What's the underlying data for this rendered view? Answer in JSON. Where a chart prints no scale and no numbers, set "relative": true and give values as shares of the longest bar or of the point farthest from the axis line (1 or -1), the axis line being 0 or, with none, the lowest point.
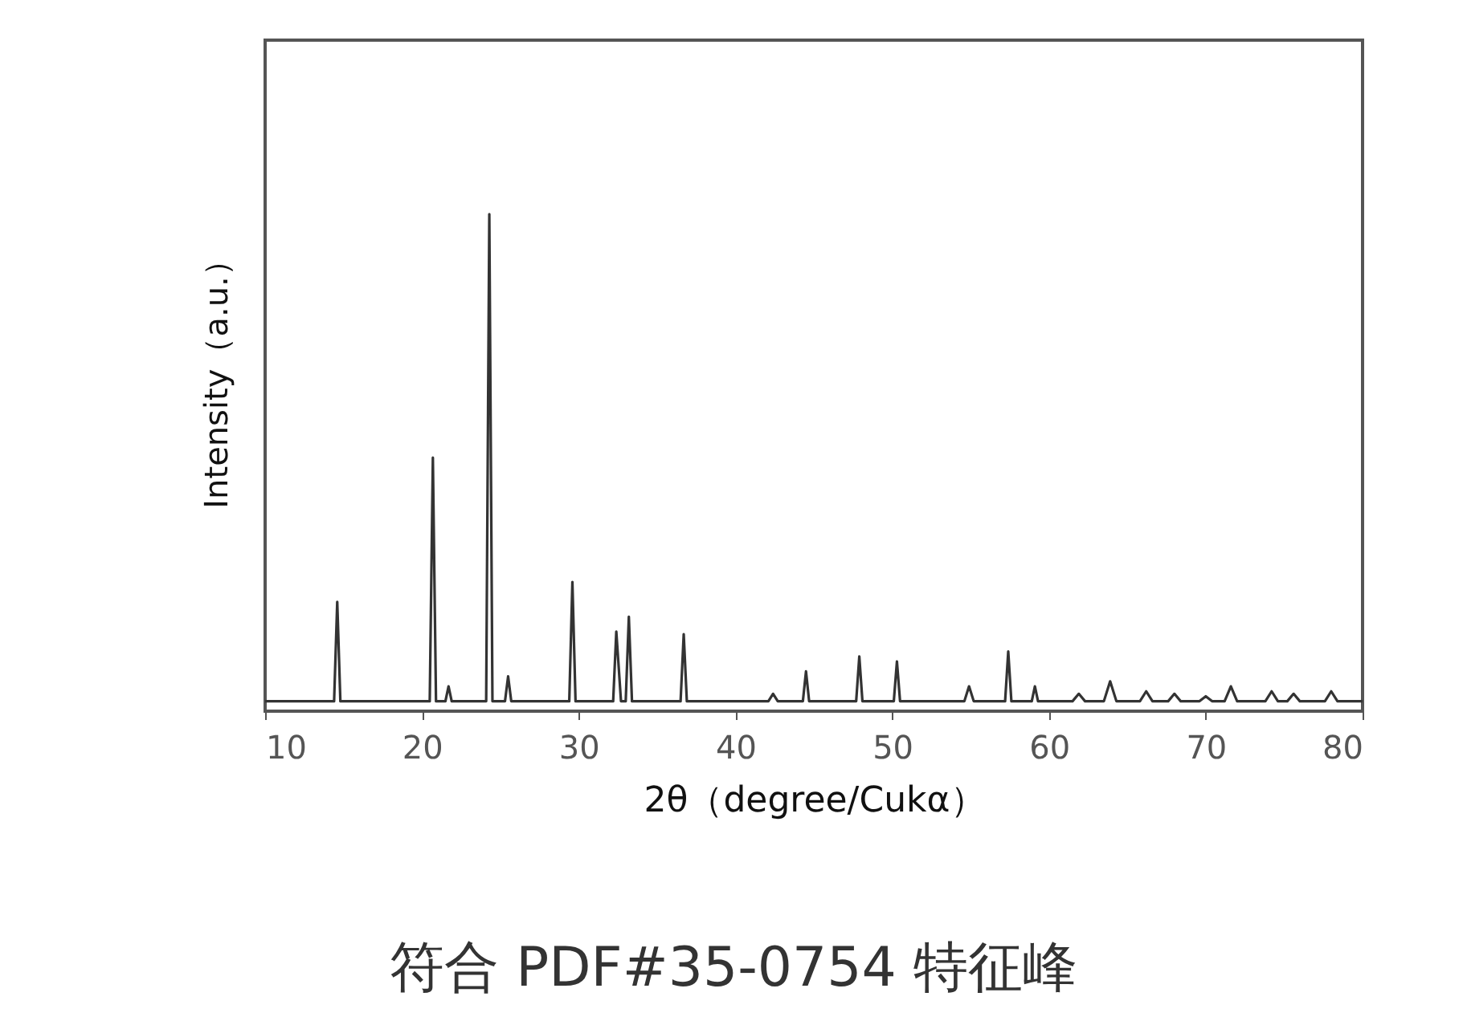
{
  "chart_data": {
    "type": "line",
    "relative": true,
    "xlabel": "2θ（degree/Cukα）",
    "ylabel": "Intensity（a.u.）",
    "annotations": [
      "符合 PDF#35-0754 特征峰"
    ],
    "xlim": [
      10,
      80
    ],
    "xticks": [
      10,
      20,
      30,
      40,
      50,
      60,
      70,
      80
    ],
    "grid": false,
    "marker": "none",
    "line_style": "solid",
    "x": [
      10,
      14.4,
      14.6,
      14.8,
      20.5,
      20.7,
      20.9,
      21.5,
      21.7,
      21.9,
      24.1,
      24.3,
      24.5,
      25.3,
      25.5,
      25.7,
      29.4,
      29.6,
      29.8,
      32.2,
      32.4,
      32.7,
      33.0,
      33.2,
      33.4,
      36.5,
      36.7,
      36.9,
      40.1,
      42.1,
      42.4,
      42.7,
      44.3,
      44.5,
      44.7,
      47.7,
      47.9,
      48.1,
      50.1,
      50.3,
      50.5,
      54.6,
      54.9,
      55.2,
      57.2,
      57.4,
      57.6,
      58.9,
      59.1,
      59.3,
      61.5,
      61.9,
      62.3,
      63.5,
      63.9,
      64.3,
      65.8,
      66.2,
      66.6,
      67.6,
      68.0,
      68.4,
      69.6,
      70.0,
      70.4,
      71.2,
      71.6,
      72.0,
      73.8,
      74.2,
      74.6,
      75.2,
      75.6,
      76.0,
      77.6,
      78.0,
      78.4,
      80
    ],
    "series": [
      {
        "color": "#333333",
        "values": [
          0.02,
          0.02,
          0.22,
          0.02,
          0.02,
          0.51,
          0.02,
          0.02,
          0.05,
          0.02,
          0.02,
          1,
          0.02,
          0.02,
          0.07,
          0.02,
          0.02,
          0.26,
          0.02,
          0.02,
          0.16,
          0.02,
          0.02,
          0.19,
          0.02,
          0.02,
          0.155,
          0.02,
          0.02,
          0.02,
          0.035,
          0.02,
          0.02,
          0.08,
          0.02,
          0.02,
          0.11,
          0.02,
          0.02,
          0.1,
          0.02,
          0.02,
          0.05,
          0.02,
          0.02,
          0.12,
          0.02,
          0.02,
          0.05,
          0.02,
          0.02,
          0.035,
          0.02,
          0.02,
          0.06,
          0.02,
          0.02,
          0.04,
          0.02,
          0.02,
          0.035,
          0.02,
          0.02,
          0.03,
          0.02,
          0.02,
          0.05,
          0.02,
          0.02,
          0.04,
          0.02,
          0.02,
          0.035,
          0.02,
          0.02,
          0.04,
          0.02,
          0.02
        ]
      }
    ]
  }
}
